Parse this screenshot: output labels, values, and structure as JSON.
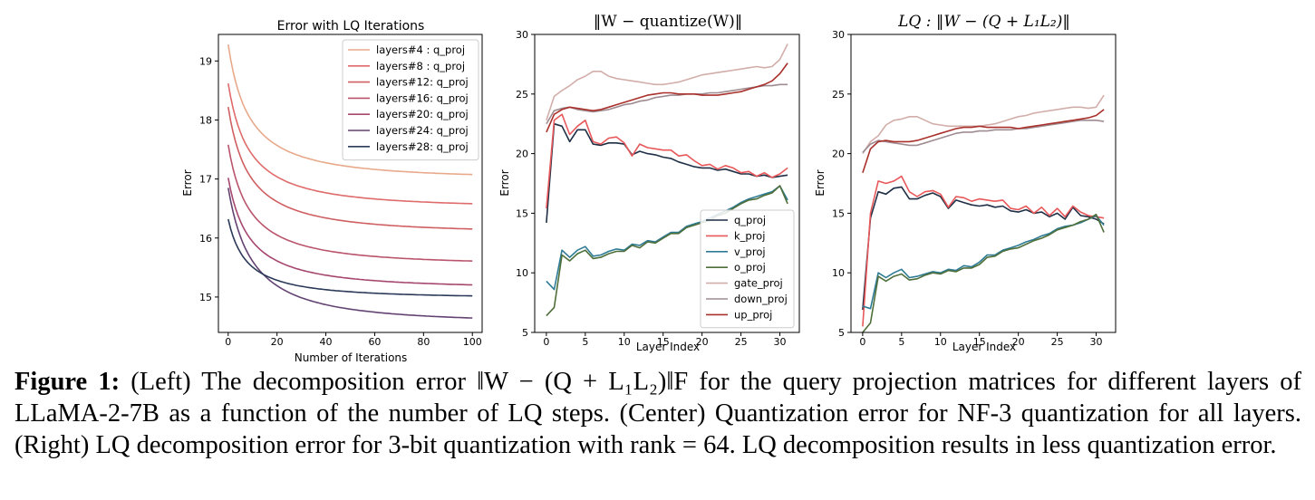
{
  "chart_data": [
    {
      "type": "line",
      "title": "Error with LQ Iterations",
      "xlabel": "Number of Iterations",
      "ylabel": "Error",
      "xlim": [
        -4,
        104
      ],
      "ylim": [
        14.4,
        19.45
      ],
      "xticks": [
        0,
        20,
        40,
        60,
        80,
        100
      ],
      "yticks": [
        15,
        16,
        17,
        18,
        19
      ],
      "legend": "top-right",
      "series": [
        {
          "name": "layers#4 : q_proj",
          "color": "#e8a98b",
          "start": 19.28,
          "end": 17.02,
          "k": 0.07
        },
        {
          "name": "layers#8 : q_proj",
          "color": "#df6b6b",
          "start": 18.62,
          "end": 16.53,
          "k": 0.07
        },
        {
          "name": "layers#12: q_proj",
          "color": "#cf5f62",
          "start": 18.22,
          "end": 16.1,
          "k": 0.07
        },
        {
          "name": "layers#16: q_proj",
          "color": "#b9546c",
          "start": 17.58,
          "end": 15.56,
          "k": 0.07
        },
        {
          "name": "layers#20: q_proj",
          "color": "#a6476f",
          "start": 17.02,
          "end": 15.16,
          "k": 0.07
        },
        {
          "name": "layers#24: q_proj",
          "color": "#634372",
          "start": 16.85,
          "end": 14.58,
          "k": 0.06
        },
        {
          "name": "layers#28: q_proj",
          "color": "#2b3a58",
          "start": 16.32,
          "end": 14.99,
          "k": 0.08
        }
      ]
    },
    {
      "type": "line",
      "title": "‖W − quantize(W)‖",
      "xlabel": "Layer Index",
      "ylabel": "Error",
      "xlim": [
        -1.5,
        32.5
      ],
      "ylim": [
        5,
        30
      ],
      "xticks": [
        0,
        5,
        10,
        15,
        20,
        25,
        30
      ],
      "yticks": [
        5,
        10,
        15,
        20,
        25,
        30
      ],
      "legend": "lower-right",
      "series": [
        {
          "name": "q_proj",
          "color": "#1f2f45",
          "values": [
            14.2,
            22.5,
            22.3,
            21.0,
            22.0,
            22.0,
            20.8,
            20.7,
            20.9,
            20.9,
            20.8,
            19.9,
            20.2,
            20.0,
            19.9,
            19.7,
            19.6,
            19.3,
            19.1,
            18.9,
            18.8,
            18.8,
            18.6,
            18.7,
            18.5,
            18.3,
            18.3,
            18.1,
            18.2,
            18.0,
            18.1,
            18.2
          ]
        },
        {
          "name": "k_proj",
          "color": "#e8585a",
          "values": [
            15.4,
            22.8,
            23.3,
            21.6,
            22.3,
            22.8,
            21.0,
            20.8,
            21.3,
            21.4,
            20.9,
            19.8,
            20.8,
            20.5,
            20.4,
            20.3,
            20.3,
            19.8,
            19.9,
            19.4,
            19.0,
            19.1,
            18.7,
            19.0,
            18.8,
            18.4,
            18.5,
            18.1,
            18.4,
            18.0,
            18.3,
            18.8
          ]
        },
        {
          "name": "v_proj",
          "color": "#2e7b96",
          "values": [
            9.3,
            8.6,
            11.9,
            11.3,
            11.9,
            12.2,
            11.4,
            11.5,
            11.8,
            12.0,
            11.9,
            12.4,
            12.3,
            12.7,
            12.6,
            13.0,
            13.4,
            13.4,
            13.9,
            14.1,
            14.3,
            14.6,
            14.9,
            15.2,
            15.5,
            15.9,
            16.2,
            16.4,
            16.6,
            16.8,
            17.3,
            16.1
          ]
        },
        {
          "name": "o_proj",
          "color": "#4f6f3a",
          "values": [
            6.4,
            7.1,
            11.5,
            11.0,
            11.6,
            11.9,
            11.2,
            11.3,
            11.6,
            11.8,
            11.8,
            12.3,
            12.1,
            12.6,
            12.5,
            12.9,
            13.3,
            13.3,
            13.8,
            14.0,
            14.2,
            14.4,
            14.8,
            15.0,
            15.4,
            15.8,
            16.1,
            16.2,
            16.5,
            16.7,
            17.3,
            15.8
          ]
        },
        {
          "name": "gate_proj",
          "color": "#d2aeaa",
          "values": [
            22.8,
            24.8,
            25.3,
            25.7,
            26.2,
            26.5,
            26.9,
            26.9,
            26.5,
            26.3,
            26.2,
            26.1,
            26.0,
            25.9,
            25.8,
            25.8,
            25.9,
            26.0,
            26.2,
            26.4,
            26.6,
            26.7,
            26.8,
            26.9,
            27.0,
            27.1,
            27.2,
            27.3,
            27.2,
            27.3,
            27.9,
            29.2
          ]
        },
        {
          "name": "down_proj",
          "color": "#9e8c91",
          "values": [
            22.5,
            23.6,
            23.8,
            23.9,
            23.7,
            23.6,
            23.5,
            23.6,
            23.7,
            23.9,
            24.1,
            24.2,
            24.4,
            24.5,
            24.7,
            24.8,
            24.9,
            24.9,
            25.0,
            25.0,
            25.0,
            25.1,
            25.1,
            25.2,
            25.3,
            25.4,
            25.5,
            25.6,
            25.7,
            25.7,
            25.8,
            25.8
          ]
        },
        {
          "name": "up_proj",
          "color": "#a9302b",
          "values": [
            21.8,
            23.3,
            23.7,
            23.9,
            23.8,
            23.7,
            23.6,
            23.7,
            23.9,
            24.1,
            24.3,
            24.5,
            24.7,
            24.9,
            25.0,
            25.1,
            25.1,
            25.0,
            25.0,
            25.0,
            24.9,
            24.9,
            24.9,
            25.0,
            25.1,
            25.2,
            25.4,
            25.6,
            25.8,
            26.1,
            26.7,
            27.6
          ]
        }
      ]
    },
    {
      "type": "line",
      "title": "LQ : ‖W − (Q + L₁L₂)‖",
      "xlabel": "Layer Index",
      "ylabel": "Error",
      "xlim": [
        -1.5,
        32.5
      ],
      "ylim": [
        5,
        30
      ],
      "xticks": [
        0,
        5,
        10,
        15,
        20,
        25,
        30
      ],
      "yticks": [
        5,
        10,
        15,
        20,
        25,
        30
      ],
      "series": [
        {
          "name": "q_proj",
          "color": "#1f2f45",
          "values": [
            6.9,
            14.6,
            16.8,
            16.6,
            17.1,
            17.2,
            16.2,
            16.2,
            16.5,
            16.7,
            16.4,
            15.4,
            16.1,
            15.9,
            15.7,
            15.6,
            15.7,
            15.5,
            15.6,
            15.2,
            15.1,
            15.3,
            15.0,
            15.1,
            14.7,
            15.0,
            14.5,
            15.5,
            14.8,
            14.7,
            14.5,
            14.1
          ]
        },
        {
          "name": "k_proj",
          "color": "#e8585a",
          "values": [
            5.5,
            15.0,
            17.7,
            17.5,
            17.7,
            18.1,
            16.8,
            16.4,
            16.8,
            16.9,
            16.6,
            15.5,
            16.4,
            16.3,
            16.0,
            16.2,
            16.1,
            16.0,
            16.1,
            15.4,
            15.3,
            15.6,
            15.0,
            15.5,
            14.8,
            15.4,
            14.7,
            15.6,
            15.1,
            14.8,
            14.7,
            14.6
          ]
        },
        {
          "name": "v_proj",
          "color": "#2e7b96",
          "values": [
            7.2,
            7.0,
            10.0,
            9.6,
            10.0,
            10.3,
            9.6,
            9.7,
            9.9,
            10.1,
            10.0,
            10.3,
            10.2,
            10.6,
            10.5,
            10.9,
            11.5,
            11.5,
            11.9,
            12.1,
            12.3,
            12.6,
            12.8,
            13.1,
            13.3,
            13.7,
            13.9,
            14.0,
            14.2,
            14.5,
            14.8,
            14.0
          ]
        },
        {
          "name": "o_proj",
          "color": "#4f6f3a",
          "values": [
            5.0,
            5.8,
            9.7,
            9.3,
            9.7,
            9.9,
            9.4,
            9.5,
            9.8,
            10.0,
            9.9,
            10.2,
            10.1,
            10.4,
            10.4,
            10.7,
            11.3,
            11.4,
            11.8,
            12.0,
            12.1,
            12.4,
            12.7,
            12.9,
            13.2,
            13.6,
            13.8,
            14.0,
            14.3,
            14.5,
            14.9,
            13.4
          ]
        },
        {
          "name": "gate_proj",
          "color": "#d2aeaa",
          "values": [
            20.0,
            21.0,
            21.5,
            22.4,
            22.8,
            22.9,
            23.1,
            23.1,
            22.8,
            22.5,
            22.4,
            22.3,
            22.3,
            22.3,
            22.3,
            22.3,
            22.4,
            22.5,
            22.7,
            22.9,
            23.1,
            23.2,
            23.4,
            23.5,
            23.6,
            23.7,
            23.8,
            23.9,
            23.9,
            23.8,
            23.9,
            24.9
          ]
        },
        {
          "name": "down_proj",
          "color": "#9e8c91",
          "values": [
            20.1,
            20.8,
            21.1,
            21.0,
            20.9,
            20.8,
            20.7,
            20.7,
            20.9,
            21.1,
            21.3,
            21.5,
            21.7,
            21.8,
            21.8,
            21.9,
            21.9,
            22.0,
            22.0,
            22.0,
            22.1,
            22.1,
            22.2,
            22.3,
            22.4,
            22.5,
            22.6,
            22.7,
            22.8,
            22.8,
            22.8,
            22.7
          ]
        },
        {
          "name": "up_proj",
          "color": "#a9302b",
          "values": [
            18.4,
            20.4,
            21.0,
            21.1,
            21.0,
            21.0,
            21.0,
            21.1,
            21.3,
            21.5,
            21.7,
            21.9,
            22.1,
            22.2,
            22.2,
            22.3,
            22.2,
            22.2,
            22.2,
            22.2,
            22.1,
            22.2,
            22.3,
            22.4,
            22.5,
            22.6,
            22.7,
            22.8,
            22.9,
            23.0,
            23.2,
            23.7
          ]
        }
      ]
    }
  ],
  "caption": {
    "label": "Figure 1:",
    "text": " (Left) The decomposition error ‖W − (Q + L₁L₂)‖F for the query projection matrices for different layers of LLaMA-2-7B as a function of the number of LQ steps. (Center) Quantization error for NF-3 quantization for all layers. (Right) LQ decomposition error for 3-bit quantization with rank = 64. LQ decomposition results in less quantization error."
  }
}
